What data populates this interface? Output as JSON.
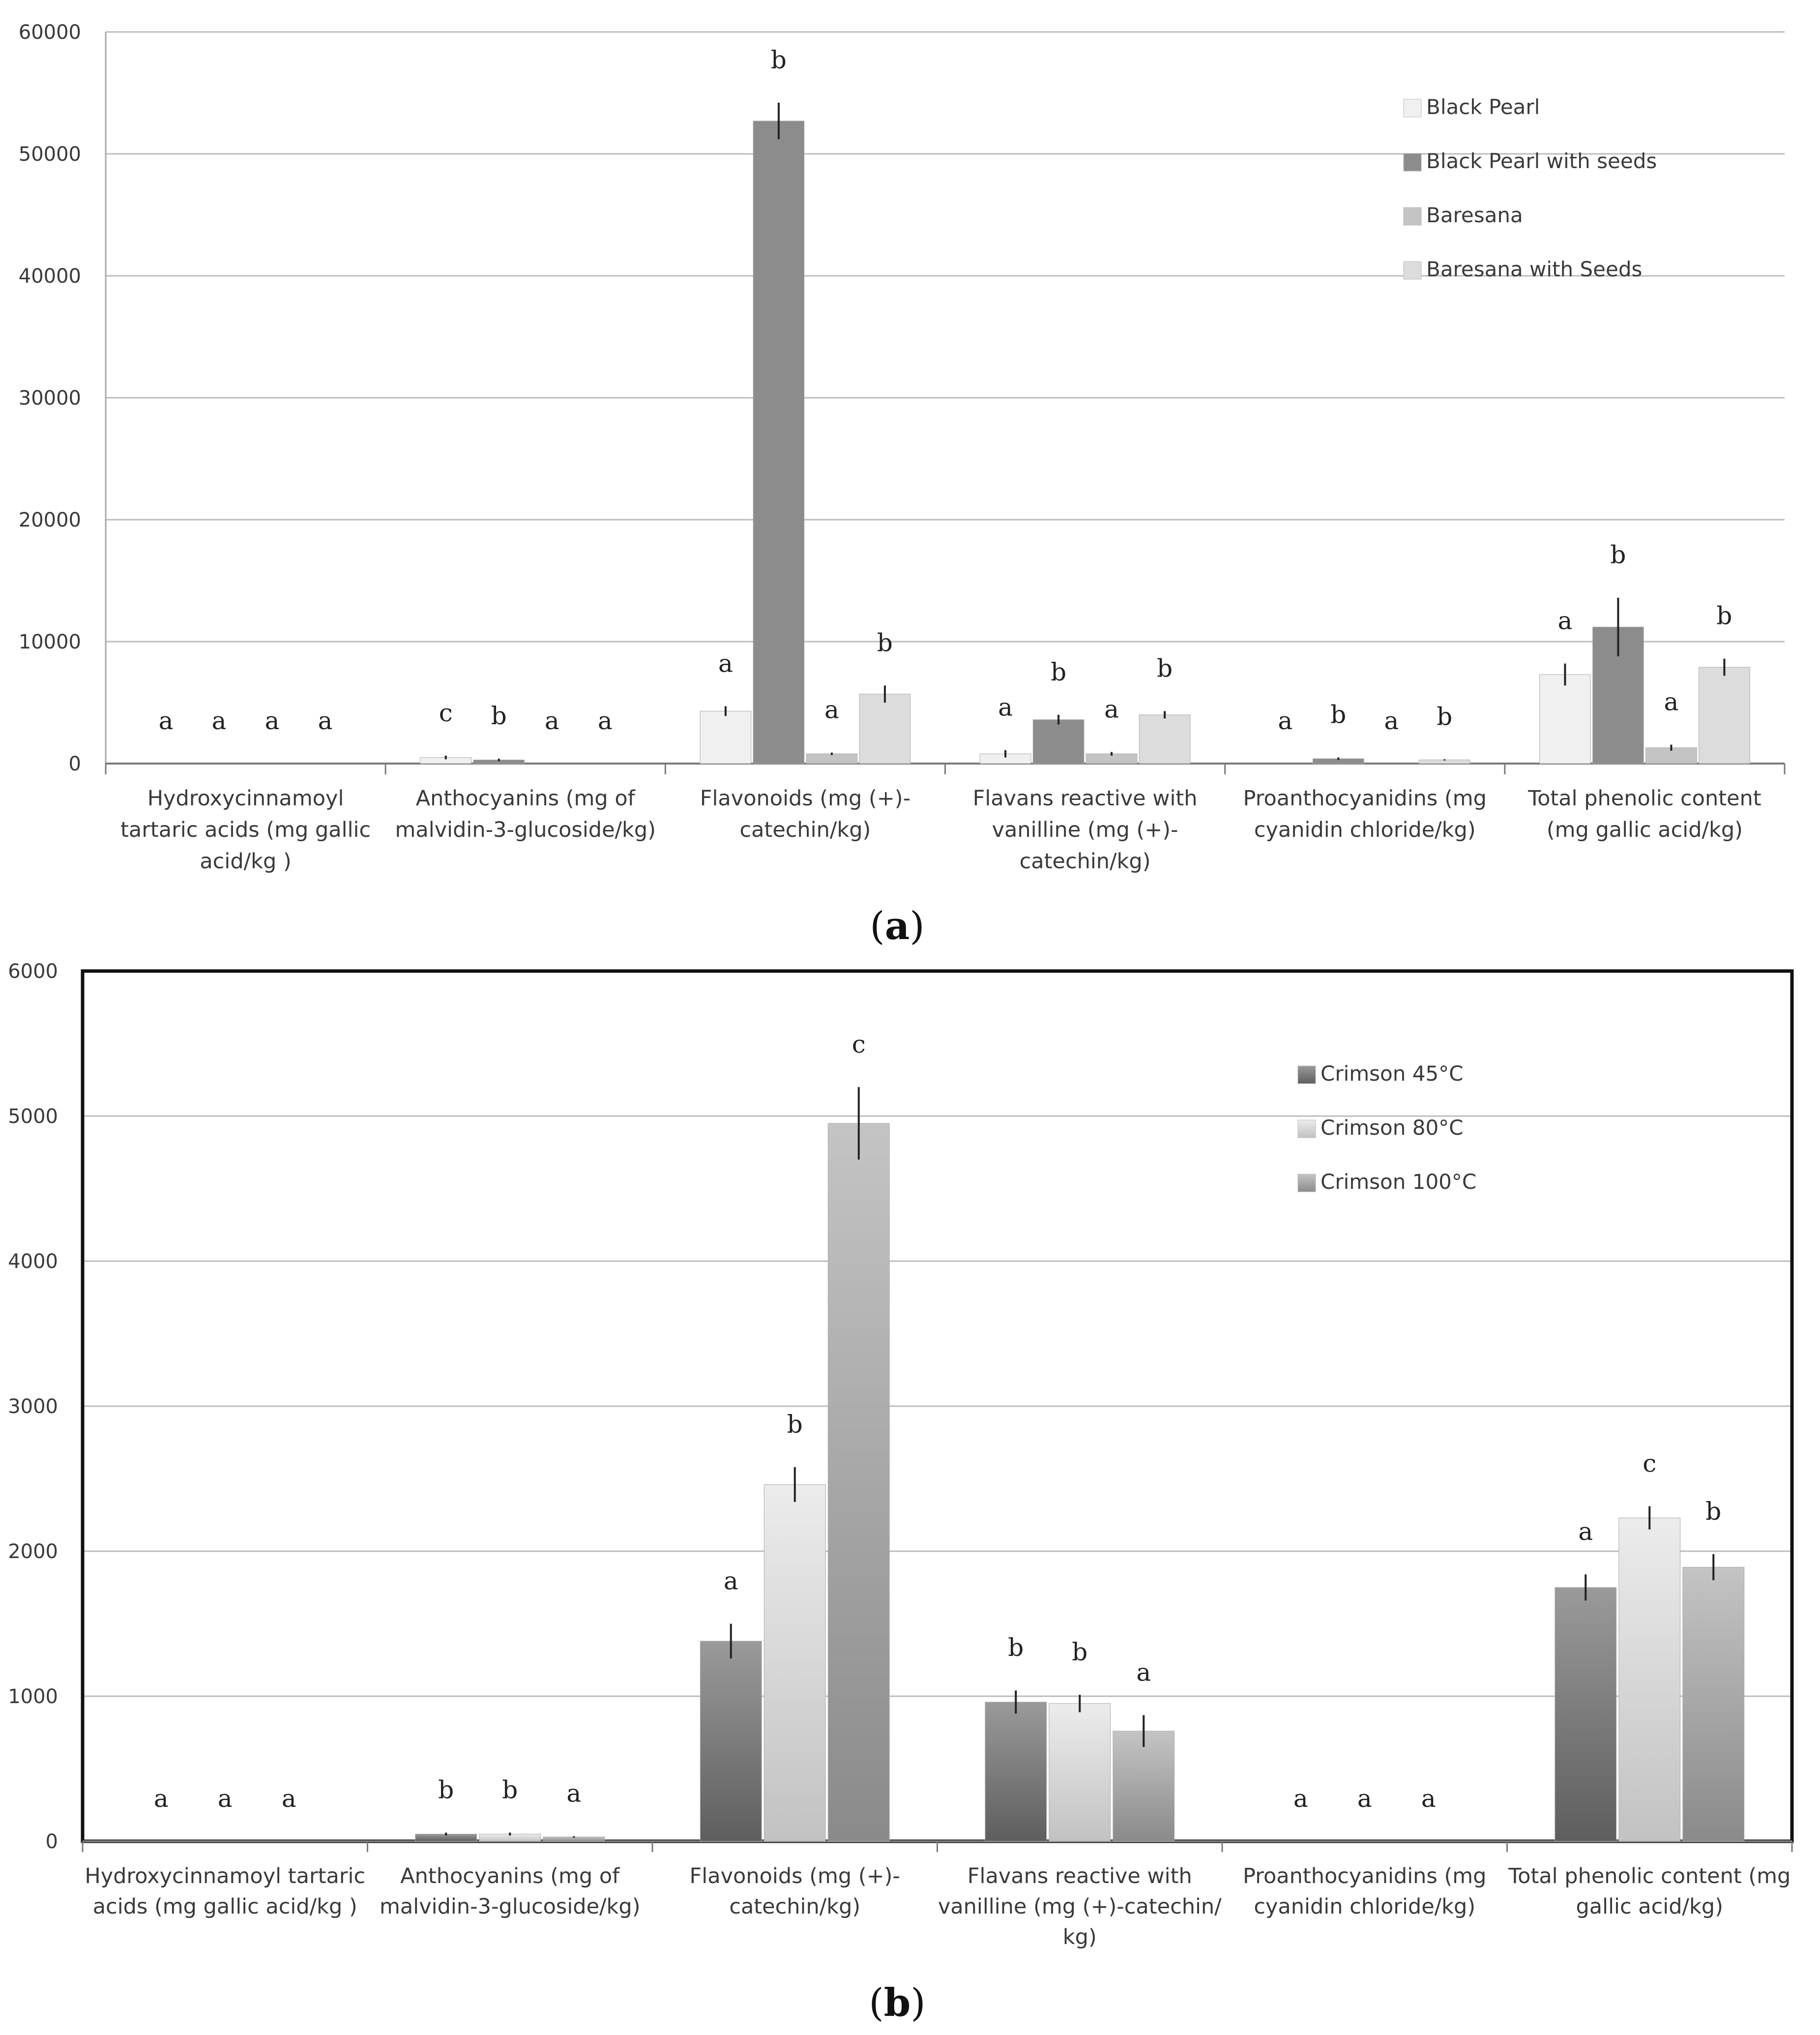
{
  "chart_data": [
    {
      "type": "bar",
      "panel_label": "a",
      "title": "",
      "xlabel": "",
      "ylabel": "",
      "ylim": [
        0,
        60000
      ],
      "yticks": [
        0,
        10000,
        20000,
        30000,
        40000,
        50000,
        60000
      ],
      "grid": true,
      "legend_position": "top-right",
      "categories": [
        [
          "Hydroxycinnamoyl",
          "tartaric acids (mg gallic",
          "acid/kg )"
        ],
        [
          "Anthocyanins (mg of",
          "malvidin-3-glucoside/kg)"
        ],
        [
          "Flavonoids (mg (+)-",
          "catechin/kg)"
        ],
        [
          "Flavans reactive with",
          "vanilline (mg (+)-",
          "catechin/kg)"
        ],
        [
          "Proanthocyanidins (mg",
          "cyanidin chloride/kg)"
        ],
        [
          "Total phenolic content",
          "(mg gallic acid/kg)"
        ]
      ],
      "series": [
        {
          "name": "Black Pearl",
          "color": "#f0f0f0",
          "values": [
            0,
            500,
            4300,
            800,
            0,
            7300
          ],
          "errors": [
            0,
            150,
            400,
            300,
            0,
            900
          ],
          "letters": [
            "a",
            "c",
            "a",
            "a",
            "a",
            "a"
          ]
        },
        {
          "name": "Black Pearl with seeds",
          "color": "#8c8c8c",
          "values": [
            0,
            300,
            52700,
            3600,
            400,
            11200
          ],
          "errors": [
            0,
            100,
            1500,
            400,
            100,
            2400
          ],
          "letters": [
            "a",
            "b",
            "b",
            "b",
            "b",
            "b"
          ]
        },
        {
          "name": "Baresana",
          "color": "#c4c4c4",
          "values": [
            0,
            0,
            800,
            800,
            0,
            1300
          ],
          "errors": [
            0,
            0,
            100,
            150,
            0,
            250
          ],
          "letters": [
            "a",
            "a",
            "a",
            "a",
            "a",
            "a"
          ]
        },
        {
          "name": "Baresana with Seeds",
          "color": "#dcdcdc",
          "values": [
            0,
            0,
            5700,
            4000,
            300,
            7900
          ],
          "errors": [
            0,
            0,
            700,
            300,
            50,
            700
          ],
          "letters": [
            "a",
            "a",
            "b",
            "b",
            "b",
            "b"
          ]
        }
      ]
    },
    {
      "type": "bar",
      "panel_label": "b",
      "title": "",
      "xlabel": "",
      "ylabel": "",
      "ylim": [
        0,
        6000
      ],
      "yticks": [
        0,
        1000,
        2000,
        3000,
        4000,
        5000,
        6000
      ],
      "grid": true,
      "legend_position": "top-right",
      "categories": [
        [
          "Hydroxycinnamoyl tartaric",
          "acids (mg gallic acid/kg )"
        ],
        [
          "Anthocyanins (mg of",
          "malvidin-3-glucoside/kg)"
        ],
        [
          "Flavonoids (mg (+)-",
          "catechin/kg)"
        ],
        [
          "Flavans reactive with",
          "vanilline (mg (+)-catechin/",
          "kg)"
        ],
        [
          "Proanthocyanidins (mg",
          "cyanidin chloride/kg)"
        ],
        [
          "Total phenolic content (mg",
          "gallic acid/kg)"
        ]
      ],
      "series": [
        {
          "name": "Crimson 45°C",
          "color": "#7e7e7e",
          "values": [
            0,
            50,
            1380,
            960,
            0,
            1750
          ],
          "errors": [
            0,
            10,
            120,
            80,
            0,
            90
          ],
          "letters": [
            "a",
            "b",
            "a",
            "b",
            "a",
            "a"
          ]
        },
        {
          "name": "Crimson 80°C",
          "color": "#d8d8d8",
          "values": [
            0,
            50,
            2460,
            950,
            0,
            2230
          ],
          "errors": [
            0,
            10,
            120,
            60,
            0,
            80
          ],
          "letters": [
            "a",
            "b",
            "b",
            "b",
            "a",
            "c"
          ]
        },
        {
          "name": "Crimson 100°C",
          "color": "#a8a8a8",
          "values": [
            0,
            30,
            4950,
            760,
            0,
            1890
          ],
          "errors": [
            0,
            5,
            250,
            110,
            0,
            90
          ],
          "letters": [
            "a",
            "a",
            "c",
            "a",
            "a",
            "b"
          ]
        }
      ]
    }
  ]
}
